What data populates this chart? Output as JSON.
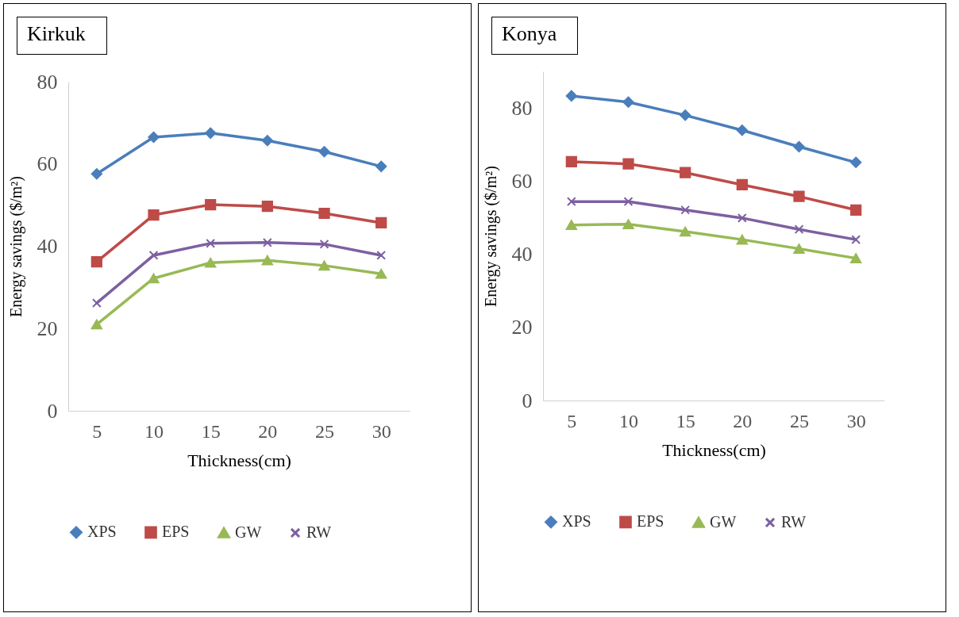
{
  "chart_data": [
    {
      "type": "line",
      "title": "Kirkuk",
      "xlabel": "Thickness(cm)",
      "ylabel": "Energy savings ($/m²)",
      "categories": [
        "5",
        "10",
        "15",
        "20",
        "25",
        "30"
      ],
      "ylim": [
        0,
        80
      ],
      "yticks": [
        0,
        20,
        40,
        60,
        80
      ],
      "grid": false,
      "legend": "bottom",
      "series": [
        {
          "name": "XPS",
          "color": "#4a7ebb",
          "marker": "diamond",
          "values": [
            57.6,
            66.5,
            67.5,
            65.7,
            63.0,
            59.4
          ]
        },
        {
          "name": "EPS",
          "color": "#be4b48",
          "marker": "square",
          "values": [
            36.2,
            47.6,
            50.1,
            49.7,
            48.0,
            45.7
          ]
        },
        {
          "name": "GW",
          "color": "#98b954",
          "marker": "triangle",
          "values": [
            21.0,
            32.2,
            36.0,
            36.6,
            35.3,
            33.3
          ]
        },
        {
          "name": "RW",
          "color": "#7d60a0",
          "marker": "cross",
          "values": [
            26.2,
            37.8,
            40.7,
            40.9,
            40.5,
            37.8
          ]
        }
      ]
    },
    {
      "type": "line",
      "title": "Konya",
      "xlabel": "Thickness(cm)",
      "ylabel": "Energy savings ($/m²)",
      "categories": [
        "5",
        "10",
        "15",
        "20",
        "25",
        "30"
      ],
      "ylim": [
        0,
        90
      ],
      "yticks": [
        0,
        20,
        40,
        60,
        80
      ],
      "grid": false,
      "legend": "bottom",
      "series": [
        {
          "name": "XPS",
          "color": "#4a7ebb",
          "marker": "diamond",
          "values": [
            83.3,
            81.6,
            78.0,
            73.9,
            69.4,
            65.1
          ]
        },
        {
          "name": "EPS",
          "color": "#be4b48",
          "marker": "square",
          "values": [
            65.3,
            64.7,
            62.3,
            59.0,
            55.8,
            52.1
          ]
        },
        {
          "name": "GW",
          "color": "#98b954",
          "marker": "triangle",
          "values": [
            48.0,
            48.2,
            46.2,
            44.0,
            41.5,
            38.9
          ]
        },
        {
          "name": "RW",
          "color": "#7d60a0",
          "marker": "cross",
          "values": [
            54.4,
            54.4,
            52.1,
            49.9,
            46.8,
            44.0
          ]
        }
      ]
    }
  ]
}
